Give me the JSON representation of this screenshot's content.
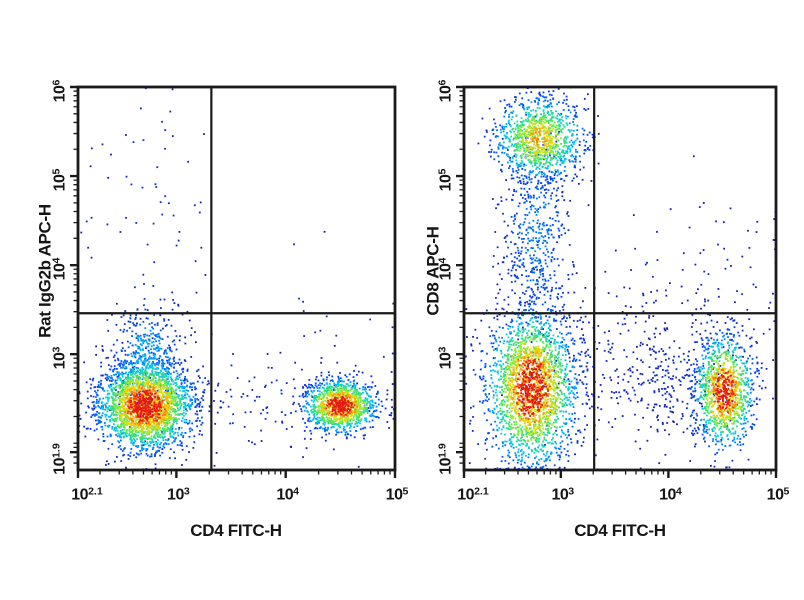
{
  "figure": {
    "background": "#ffffff",
    "axis_color": "#1a1a1a",
    "label_color": "#151515"
  },
  "chart_data": [
    {
      "type": "scatter",
      "subtype": "flow-cytometry-pseudocolor-dot-plot",
      "title": "",
      "xlabel": "CD4 FITC-H",
      "ylabel": "Rat IgG2b APC-H",
      "x_scale": "log10",
      "y_scale": "log10",
      "xlim_log": [
        2.1,
        5.0
      ],
      "ylim_log": [
        1.7,
        6.0
      ],
      "grid": false,
      "legend": false,
      "x_ticks": [
        {
          "base": "10",
          "exp": "2.1",
          "log": 2.1
        },
        {
          "base": "10",
          "exp": "3",
          "log": 3
        },
        {
          "base": "10",
          "exp": "4",
          "log": 4
        },
        {
          "base": "10",
          "exp": "5",
          "log": 5
        }
      ],
      "y_ticks": [
        {
          "base": "10",
          "exp": "1.9",
          "log": 1.9
        },
        {
          "base": "10",
          "exp": "3",
          "log": 3
        },
        {
          "base": "10",
          "exp": "4",
          "log": 4
        },
        {
          "base": "10",
          "exp": "5",
          "log": 5
        },
        {
          "base": "10",
          "exp": "6",
          "log": 6
        }
      ],
      "quadrant_gate_log": {
        "x": 3.32,
        "y": 3.46
      },
      "density_colormap": [
        "#1919a0",
        "#0046fa",
        "#00cdf5",
        "#3ce164",
        "#aaeb2d",
        "#ffd200",
        "#ff7819",
        "#e41912"
      ],
      "populations": [
        {
          "name": "igg2b-neg-cd4-neg-main",
          "cx": 2.72,
          "cy": 2.42,
          "sx": 0.21,
          "sy": 0.24,
          "n": 2600,
          "peak": 1.0
        },
        {
          "name": "igg2b-neg-cd4-neg-upper-tail",
          "cx": 2.74,
          "cy": 2.95,
          "sx": 0.17,
          "sy": 0.33,
          "n": 420,
          "peak": 0.38
        },
        {
          "name": "igg2b-neg-cd4-pos",
          "cx": 4.5,
          "cy": 2.42,
          "sx": 0.16,
          "sy": 0.14,
          "n": 1250,
          "peak": 1.0
        },
        {
          "name": "vertical-sparse-column",
          "cx": 2.78,
          "cy": 4.6,
          "sx": 0.28,
          "sy": 0.85,
          "n": 70,
          "peak": 0.1
        },
        {
          "name": "baseline-sparse",
          "cx": 3.6,
          "cy": 2.45,
          "sx": 0.75,
          "sy": 0.3,
          "n": 160,
          "peak": 0.09
        },
        {
          "name": "upper-right-sparse",
          "cx": 4.4,
          "cy": 3.3,
          "sx": 0.45,
          "sy": 0.55,
          "n": 25,
          "peak": 0.07
        }
      ]
    },
    {
      "type": "scatter",
      "subtype": "flow-cytometry-pseudocolor-dot-plot",
      "title": "",
      "xlabel": "CD4 FITC-H",
      "ylabel": "CD8 APC-H",
      "x_scale": "log10",
      "y_scale": "log10",
      "xlim_log": [
        2.1,
        5.0
      ],
      "ylim_log": [
        1.7,
        6.0
      ],
      "grid": false,
      "legend": false,
      "x_ticks": [
        {
          "base": "10",
          "exp": "2.1",
          "log": 2.1
        },
        {
          "base": "10",
          "exp": "3",
          "log": 3
        },
        {
          "base": "10",
          "exp": "4",
          "log": 4
        },
        {
          "base": "10",
          "exp": "5",
          "log": 5
        }
      ],
      "y_ticks": [
        {
          "base": "10",
          "exp": "1.9",
          "log": 1.9
        },
        {
          "base": "10",
          "exp": "3",
          "log": 3
        },
        {
          "base": "10",
          "exp": "4",
          "log": 4
        },
        {
          "base": "10",
          "exp": "5",
          "log": 5
        },
        {
          "base": "10",
          "exp": "6",
          "log": 6
        }
      ],
      "quadrant_gate_log": {
        "x": 3.31,
        "y": 3.46
      },
      "density_colormap": [
        "#1919a0",
        "#0046fa",
        "#00cdf5",
        "#3ce164",
        "#aaeb2d",
        "#ffd200",
        "#ff7819",
        "#e41912"
      ],
      "populations": [
        {
          "name": "cd8-pos-cd4-neg",
          "cx": 2.8,
          "cy": 5.42,
          "sx": 0.2,
          "sy": 0.23,
          "n": 1050,
          "peak": 0.8
        },
        {
          "name": "cd8-intermediate-column",
          "cx": 2.77,
          "cy": 4.35,
          "sx": 0.17,
          "sy": 0.62,
          "n": 520,
          "peak": 0.3
        },
        {
          "name": "cd8-neg-cd4-neg",
          "cx": 2.73,
          "cy": 2.62,
          "sx": 0.2,
          "sy": 0.42,
          "n": 2300,
          "peak": 1.0
        },
        {
          "name": "cd4-pos",
          "cx": 4.52,
          "cy": 2.58,
          "sx": 0.13,
          "sy": 0.3,
          "n": 1150,
          "peak": 1.0
        },
        {
          "name": "cd4-pos-left-halo",
          "cx": 4.12,
          "cy": 2.7,
          "sx": 0.34,
          "sy": 0.36,
          "n": 220,
          "peak": 0.1
        },
        {
          "name": "mid-sparse",
          "cx": 3.5,
          "cy": 2.9,
          "sx": 0.6,
          "sy": 0.5,
          "n": 260,
          "peak": 0.08
        },
        {
          "name": "upper-right-sparse",
          "cx": 4.35,
          "cy": 3.8,
          "sx": 0.5,
          "sy": 0.6,
          "n": 80,
          "peak": 0.07
        }
      ]
    }
  ]
}
